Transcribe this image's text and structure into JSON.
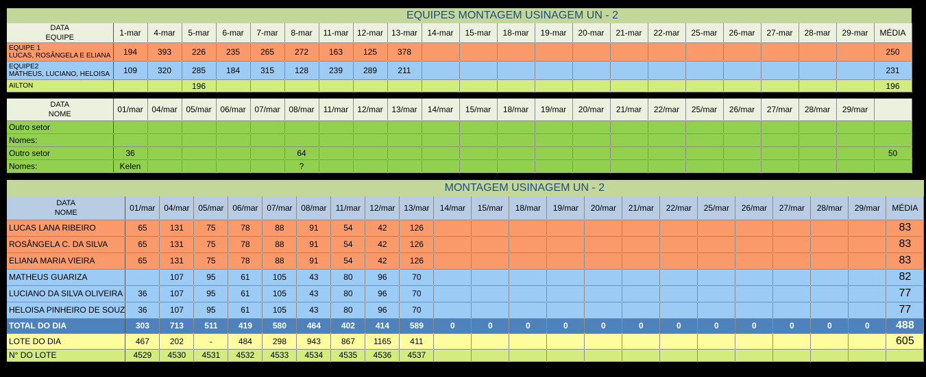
{
  "dates_dash": [
    "1-mar",
    "4-mar",
    "5-mar",
    "6-mar",
    "7-mar",
    "8-mar",
    "11-mar",
    "12-mar",
    "13-mar",
    "14-mar",
    "15-mar",
    "18-mar",
    "19-mar",
    "20-mar",
    "21-mar",
    "22-mar",
    "25-mar",
    "26-mar",
    "27-mar",
    "28-mar",
    "29-mar"
  ],
  "dates_slash": [
    "01/mar",
    "04/mar",
    "05/mar",
    "06/mar",
    "07/mar",
    "08/mar",
    "11/mar",
    "12/mar",
    "13/mar",
    "14/mar",
    "15/mar",
    "18/mar",
    "19/mar",
    "20/mar",
    "21/mar",
    "22/mar",
    "25/mar",
    "26/mar",
    "27/mar",
    "28/mar",
    "29/mar"
  ],
  "media_label": "MÉDIA",
  "equipes": {
    "title": "EQUIPES MONTAGEM USINAGEM UN - 2",
    "header_line1": "DATA",
    "header_line2": "EQUIPE",
    "rows": [
      {
        "name1": "EQUIPE 1",
        "name2": "LUCAS, ROSÂNGELA E ELIANA",
        "values": [
          "194",
          "393",
          "226",
          "235",
          "265",
          "272",
          "163",
          "125",
          "378",
          "",
          "",
          "",
          "",
          "",
          "",
          "",
          "",
          "",
          "",
          "",
          ""
        ],
        "media": "250",
        "color": "orange"
      },
      {
        "name1": "EQUIPE2",
        "name2": "MATHEUS, LUCIANO, HELOISA",
        "values": [
          "109",
          "320",
          "285",
          "184",
          "315",
          "128",
          "239",
          "289",
          "211",
          "",
          "",
          "",
          "",
          "",
          "",
          "",
          "",
          "",
          "",
          "",
          ""
        ],
        "media": "231",
        "color": "blue"
      },
      {
        "name1": "AILTON",
        "name2": "",
        "values": [
          "",
          "",
          "196",
          "",
          "",
          "",
          "",
          "",
          "",
          "",
          "",
          "",
          "",
          "",
          "",
          "",
          "",
          "",
          "",
          "",
          ""
        ],
        "media": "196",
        "color": "lime"
      }
    ]
  },
  "outros": {
    "header_line1": "DATA",
    "header_line2": "NOME",
    "rows": [
      {
        "label": "Outro setor",
        "values": [
          "",
          "",
          "",
          "",
          "",
          "",
          "",
          "",
          "",
          "",
          "",
          "",
          "",
          "",
          "",
          "",
          "",
          "",
          "",
          "",
          ""
        ],
        "media": ""
      },
      {
        "label": "Nomes:",
        "values": [
          "",
          "",
          "",
          "",
          "",
          "",
          "",
          "",
          "",
          "",
          "",
          "",
          "",
          "",
          "",
          "",
          "",
          "",
          "",
          "",
          ""
        ],
        "media": ""
      },
      {
        "label": "Outro setor",
        "values": [
          "36",
          "",
          "",
          "",
          "",
          "64",
          "",
          "",
          "",
          "",
          "",
          "",
          "",
          "",
          "",
          "",
          "",
          "",
          "",
          "",
          ""
        ],
        "media": "50"
      },
      {
        "label": "Nomes:",
        "values": [
          "Kelen",
          "",
          "",
          "",
          "",
          "?",
          "",
          "",
          "",
          "",
          "",
          "",
          "",
          "",
          "",
          "",
          "",
          "",
          "",
          "",
          ""
        ],
        "media": ""
      }
    ]
  },
  "montagem": {
    "title": "MONTAGEM USINAGEM UN - 2",
    "header_line1": "DATA",
    "header_line2": "NOME",
    "rows": [
      {
        "name": "LUCAS LANA RIBEIRO",
        "values": [
          "65",
          "131",
          "75",
          "78",
          "88",
          "91",
          "54",
          "42",
          "126",
          "",
          "",
          "",
          "",
          "",
          "",
          "",
          "",
          "",
          "",
          "",
          ""
        ],
        "media": "83",
        "color": "orange"
      },
      {
        "name": "ROSÂNGELA C. DA SILVA",
        "values": [
          "65",
          "131",
          "75",
          "78",
          "88",
          "91",
          "54",
          "42",
          "126",
          "",
          "",
          "",
          "",
          "",
          "",
          "",
          "",
          "",
          "",
          "",
          ""
        ],
        "media": "83",
        "color": "orange"
      },
      {
        "name": "ELIANA MARIA VIEIRA",
        "values": [
          "65",
          "131",
          "75",
          "78",
          "88",
          "91",
          "54",
          "42",
          "126",
          "",
          "",
          "",
          "",
          "",
          "",
          "",
          "",
          "",
          "",
          "",
          ""
        ],
        "media": "83",
        "color": "orange"
      },
      {
        "name": "MATHEUS GUARIZA",
        "values": [
          "",
          "107",
          "95",
          "61",
          "105",
          "43",
          "80",
          "96",
          "70",
          "",
          "",
          "",
          "",
          "",
          "",
          "",
          "",
          "",
          "",
          "",
          ""
        ],
        "media": "82",
        "color": "blue"
      },
      {
        "name": "LUCIANO DA SILVA OLIVEIRA",
        "values": [
          "36",
          "107",
          "95",
          "61",
          "105",
          "43",
          "80",
          "96",
          "70",
          "",
          "",
          "",
          "",
          "",
          "",
          "",
          "",
          "",
          "",
          "",
          ""
        ],
        "media": "77",
        "color": "blue"
      },
      {
        "name": "HELOISA PINHEIRO DE SOUZ",
        "values": [
          "36",
          "107",
          "95",
          "61",
          "105",
          "43",
          "80",
          "96",
          "70",
          "",
          "",
          "",
          "",
          "",
          "",
          "",
          "",
          "",
          "",
          "",
          ""
        ],
        "media": "77",
        "color": "blue"
      }
    ],
    "total": {
      "label": "TOTAL DO DIA",
      "values": [
        "303",
        "713",
        "511",
        "419",
        "580",
        "464",
        "402",
        "414",
        "589",
        "0",
        "0",
        "0",
        "0",
        "0",
        "0",
        "0",
        "0",
        "0",
        "0",
        "0",
        "0"
      ],
      "media": "488"
    },
    "lote": {
      "label": "LOTE DO DIA",
      "values": [
        "467",
        "202",
        "-",
        "484",
        "298",
        "943",
        "867",
        "1165",
        "411",
        "",
        "",
        "",
        "",
        "",
        "",
        "",
        "",
        "",
        "",
        "",
        ""
      ],
      "media": "605"
    },
    "numero_lote": {
      "label": "N° DO LOTE",
      "values": [
        "4529",
        "4530",
        "4531",
        "4532",
        "4533",
        "4534",
        "4535",
        "4536",
        "4537",
        "",
        "",
        "",
        "",
        "",
        "",
        "",
        "",
        "",
        "",
        "",
        ""
      ],
      "media": ""
    }
  },
  "colors": {
    "orange": "#fa9a6b",
    "blue": "#9ccbf6",
    "lime": "#d2ec7e",
    "green": "#92d150",
    "yellow": "#fdfd9e",
    "total": "#4f81bd",
    "title_bar": "#c4d79b"
  }
}
